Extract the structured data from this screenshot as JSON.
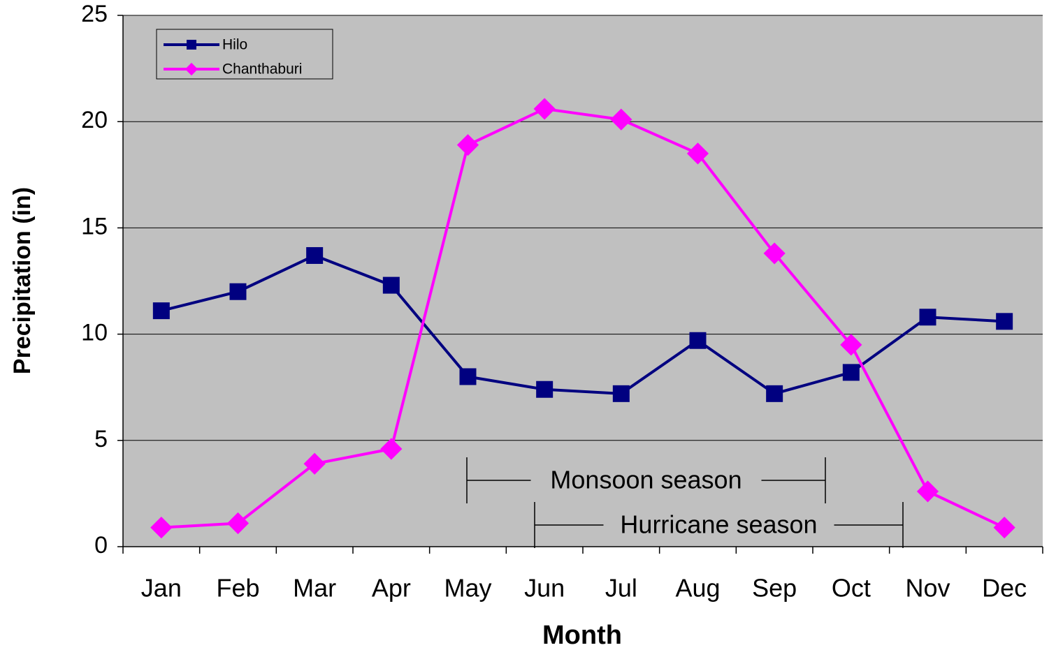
{
  "chart_data": {
    "type": "line",
    "x_label": "Month",
    "y_label": "Precipitation (in)",
    "categories": [
      "Jan",
      "Feb",
      "Mar",
      "Apr",
      "May",
      "Jun",
      "Jul",
      "Aug",
      "Sep",
      "Oct",
      "Nov",
      "Dec"
    ],
    "series": [
      {
        "name": "Hilo",
        "color": "#000080",
        "marker": "square",
        "values": [
          11.1,
          12.0,
          13.7,
          12.3,
          8.0,
          7.4,
          7.2,
          9.7,
          7.2,
          8.2,
          10.8,
          10.6
        ]
      },
      {
        "name": "Chanthaburi",
        "color": "#ff00ff",
        "marker": "diamond",
        "values": [
          0.9,
          1.1,
          3.9,
          4.6,
          18.9,
          20.6,
          20.1,
          18.5,
          13.8,
          9.5,
          2.6,
          0.9
        ]
      }
    ],
    "ylim": [
      0,
      25
    ],
    "yticks": [
      0,
      5,
      10,
      15,
      20,
      25
    ],
    "grid": true,
    "legend": "upper-left",
    "annotations": [
      "Monsoon season",
      "Hurricane season"
    ]
  }
}
